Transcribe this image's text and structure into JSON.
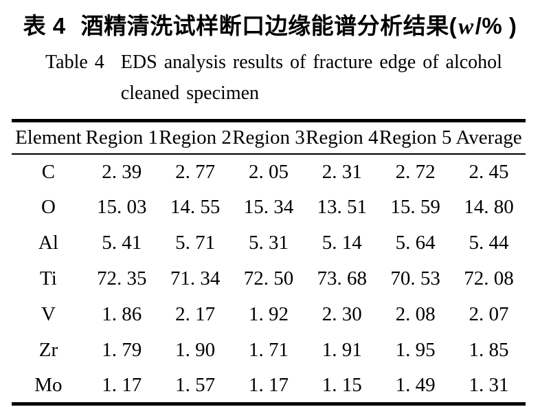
{
  "caption": {
    "zh": {
      "label": "表 4",
      "title": "酒精清洗试样断口边缘能谱分析结果",
      "unit_open": "(",
      "unit_italic": "w",
      "unit_close": "/% )"
    },
    "en": {
      "label": "Table 4",
      "line1": "EDS analysis results of fracture edge of alcohol",
      "line2": "cleaned specimen"
    }
  },
  "table": {
    "header": [
      "Element",
      "Region 1",
      "Region 2",
      "Region 3",
      "Region 4",
      "Region 5",
      "Average"
    ],
    "rows": [
      {
        "element": "C",
        "cells": [
          "2. 39",
          "2. 77",
          "2. 05",
          "2. 31",
          "2. 72",
          "2. 45"
        ]
      },
      {
        "element": "O",
        "cells": [
          "15. 03",
          "14. 55",
          "15. 34",
          "13. 51",
          "15. 59",
          "14. 80"
        ]
      },
      {
        "element": "Al",
        "cells": [
          "5. 41",
          "5. 71",
          "5. 31",
          "5. 14",
          "5. 64",
          "5. 44"
        ]
      },
      {
        "element": "Ti",
        "cells": [
          "72. 35",
          "71. 34",
          "72. 50",
          "73. 68",
          "70. 53",
          "72. 08"
        ]
      },
      {
        "element": "V",
        "cells": [
          "1. 86",
          "2. 17",
          "1. 92",
          "2. 30",
          "2. 08",
          "2. 07"
        ]
      },
      {
        "element": "Zr",
        "cells": [
          "1. 79",
          "1. 90",
          "1. 71",
          "1. 91",
          "1. 95",
          "1. 85"
        ]
      },
      {
        "element": "Mo",
        "cells": [
          "1. 17",
          "1. 57",
          "1. 17",
          "1. 15",
          "1. 49",
          "1. 31"
        ]
      }
    ]
  },
  "chart_data": {
    "type": "table",
    "title_zh": "表 4 酒精清洗试样断口边缘能谱分析结果(w/%)",
    "title_en": "Table 4 EDS analysis results of fracture edge of alcohol cleaned specimen",
    "unit": "w/%",
    "columns": [
      "Element",
      "Region 1",
      "Region 2",
      "Region 3",
      "Region 4",
      "Region 5",
      "Average"
    ],
    "rows": [
      [
        "C",
        2.39,
        2.77,
        2.05,
        2.31,
        2.72,
        2.45
      ],
      [
        "O",
        15.03,
        14.55,
        15.34,
        13.51,
        15.59,
        14.8
      ],
      [
        "Al",
        5.41,
        5.71,
        5.31,
        5.14,
        5.64,
        5.44
      ],
      [
        "Ti",
        72.35,
        71.34,
        72.5,
        73.68,
        70.53,
        72.08
      ],
      [
        "V",
        1.86,
        2.17,
        1.92,
        2.3,
        2.08,
        2.07
      ],
      [
        "Zr",
        1.79,
        1.9,
        1.71,
        1.91,
        1.95,
        1.85
      ],
      [
        "Mo",
        1.17,
        1.57,
        1.17,
        1.15,
        1.49,
        1.31
      ]
    ]
  }
}
